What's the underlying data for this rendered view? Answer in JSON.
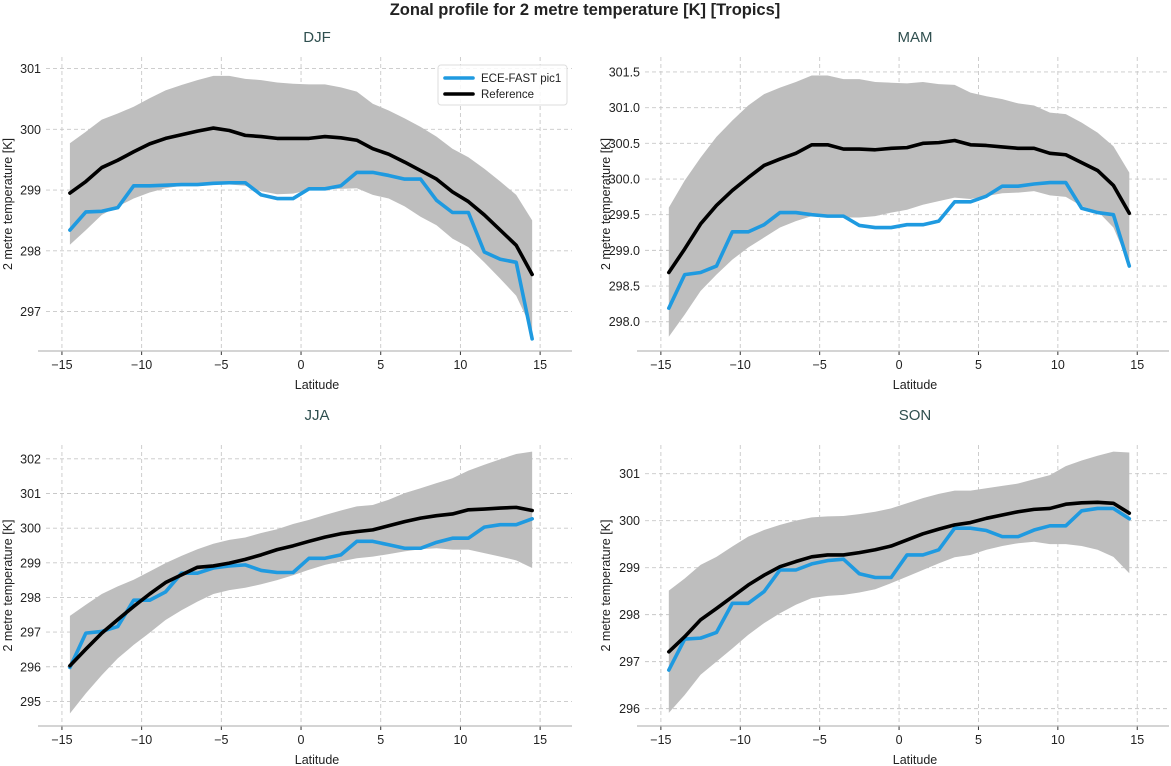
{
  "chart_data": {
    "type": "line",
    "title": "Zonal profile for 2 metre temperature [K] [Tropics]",
    "legend": {
      "placement": "top-right of first panel",
      "entries": [
        "ECE-FAST pic1",
        "Reference"
      ]
    },
    "colors": {
      "model": "#1f9ae0",
      "reference": "#000000",
      "band": "#bebebe",
      "panel_title": "#2f4f4f"
    },
    "grid": true,
    "lat": [
      -14.5,
      -13.5,
      -12.5,
      -11.5,
      -10.5,
      -9.5,
      -8.5,
      -7.5,
      -6.5,
      -5.5,
      -4.5,
      -3.5,
      -2.5,
      -1.5,
      -0.5,
      0.5,
      1.5,
      2.5,
      3.5,
      4.5,
      5.5,
      6.5,
      7.5,
      8.5,
      9.5,
      10.5,
      11.5,
      12.5,
      13.5,
      14.5
    ],
    "panels": [
      {
        "title": "DJF",
        "xlabel": "Latitude",
        "ylabel": "2 metre temperature [K]",
        "xlim": [
          -16,
          17
        ],
        "ylim": [
          296.35,
          301.19
        ],
        "xticks": [
          -15,
          -10,
          -5,
          0,
          5,
          10,
          15
        ],
        "xtick_labels": [
          "−15",
          "−10",
          "−5",
          "0",
          "5",
          "10",
          "15"
        ],
        "yticks": [
          297,
          298,
          299,
          300,
          301
        ],
        "ytick_labels": [
          "297",
          "298",
          "299",
          "300",
          "301"
        ],
        "show_legend": true,
        "series": [
          {
            "name": "ECE-FAST pic1",
            "values": [
              298.34,
              298.64,
              298.65,
              298.71,
              299.07,
              299.07,
              299.08,
              299.09,
              299.09,
              299.11,
              299.12,
              299.12,
              298.92,
              298.86,
              298.86,
              299.02,
              299.02,
              299.07,
              299.29,
              299.29,
              299.24,
              299.18,
              299.18,
              298.83,
              298.63,
              298.63,
              297.98,
              297.86,
              297.81,
              296.55
            ]
          },
          {
            "name": "Reference",
            "values": [
              298.95,
              299.14,
              299.37,
              299.49,
              299.63,
              299.76,
              299.85,
              299.91,
              299.97,
              300.02,
              299.98,
              299.9,
              299.88,
              299.85,
              299.85,
              299.85,
              299.88,
              299.86,
              299.82,
              299.68,
              299.59,
              299.46,
              299.32,
              299.18,
              298.97,
              298.81,
              298.59,
              298.34,
              298.09,
              297.61
            ]
          }
        ],
        "band_upper": [
          299.77,
          299.96,
          300.16,
          300.26,
          300.37,
          300.51,
          300.64,
          300.73,
          300.81,
          300.88,
          300.88,
          300.83,
          300.81,
          300.77,
          300.75,
          300.74,
          300.74,
          300.69,
          300.62,
          300.42,
          300.31,
          300.18,
          300.04,
          299.88,
          299.68,
          299.54,
          299.35,
          299.14,
          298.92,
          298.5
        ],
        "band_lower": [
          298.1,
          298.34,
          298.59,
          298.73,
          298.86,
          298.96,
          299.03,
          299.07,
          299.07,
          299.09,
          299.09,
          299.07,
          298.98,
          298.93,
          298.94,
          299.0,
          299.02,
          299.02,
          299.03,
          298.92,
          298.86,
          298.73,
          298.56,
          298.42,
          298.2,
          298.06,
          297.81,
          297.54,
          297.26,
          296.7
        ]
      },
      {
        "title": "MAM",
        "xlabel": "Latitude",
        "ylabel": "2 metre temperature [K]",
        "xlim": [
          -16,
          17
        ],
        "ylim": [
          297.59,
          301.71
        ],
        "xticks": [
          -15,
          -10,
          -5,
          0,
          5,
          10,
          15
        ],
        "xtick_labels": [
          "−15",
          "−10",
          "−5",
          "0",
          "5",
          "10",
          "15"
        ],
        "yticks": [
          298.0,
          298.5,
          299.0,
          299.5,
          300.0,
          300.5,
          301.0,
          301.5
        ],
        "ytick_labels": [
          "298.0",
          "298.5",
          "299.0",
          "299.5",
          "300.0",
          "300.5",
          "301.0",
          "301.5"
        ],
        "show_legend": false,
        "series": [
          {
            "name": "ECE-FAST pic1",
            "values": [
              298.19,
              298.66,
              298.69,
              298.78,
              299.26,
              299.26,
              299.36,
              299.53,
              299.53,
              299.5,
              299.48,
              299.48,
              299.35,
              299.32,
              299.32,
              299.36,
              299.36,
              299.41,
              299.68,
              299.68,
              299.76,
              299.9,
              299.9,
              299.93,
              299.95,
              299.95,
              299.59,
              299.53,
              299.5,
              298.78
            ]
          },
          {
            "name": "Reference",
            "values": [
              298.69,
              299.02,
              299.37,
              299.63,
              299.84,
              300.02,
              300.19,
              300.28,
              300.36,
              300.48,
              300.48,
              300.42,
              300.42,
              300.41,
              300.43,
              300.44,
              300.5,
              300.51,
              300.54,
              300.48,
              300.47,
              300.45,
              300.43,
              300.43,
              300.36,
              300.34,
              300.23,
              300.12,
              299.91,
              299.52
            ]
          }
        ],
        "band_upper": [
          299.6,
          299.98,
          300.3,
          300.59,
          300.82,
          301.03,
          301.19,
          301.28,
          301.36,
          301.45,
          301.45,
          301.4,
          301.4,
          301.36,
          301.35,
          301.34,
          301.36,
          301.33,
          301.32,
          301.21,
          301.16,
          301.12,
          301.06,
          301.03,
          300.93,
          300.91,
          300.79,
          300.65,
          300.46,
          300.09
        ],
        "band_lower": [
          297.79,
          298.1,
          298.43,
          298.66,
          298.87,
          299.04,
          299.18,
          299.32,
          299.41,
          299.48,
          299.48,
          299.46,
          299.46,
          299.48,
          299.53,
          299.57,
          299.64,
          299.69,
          299.74,
          299.72,
          299.76,
          299.8,
          299.81,
          299.83,
          299.77,
          299.75,
          299.62,
          299.55,
          299.32,
          298.8
        ]
      },
      {
        "title": "JJA",
        "xlabel": "Latitude",
        "ylabel": "2 metre temperature [K]",
        "xlim": [
          -16,
          17
        ],
        "ylim": [
          294.29,
          302.4
        ],
        "xticks": [
          -15,
          -10,
          -5,
          0,
          5,
          10,
          15
        ],
        "xtick_labels": [
          "−15",
          "−10",
          "−5",
          "0",
          "5",
          "10",
          "15"
        ],
        "yticks": [
          295,
          296,
          297,
          298,
          299,
          300,
          301,
          302
        ],
        "ytick_labels": [
          "295",
          "296",
          "297",
          "298",
          "299",
          "300",
          "301",
          "302"
        ],
        "show_legend": false,
        "series": [
          {
            "name": "ECE-FAST pic1",
            "values": [
              295.98,
              296.97,
              297.02,
              297.16,
              297.92,
              297.92,
              298.16,
              298.7,
              298.7,
              298.85,
              298.91,
              298.94,
              298.78,
              298.72,
              298.72,
              299.13,
              299.13,
              299.23,
              299.62,
              299.62,
              299.52,
              299.42,
              299.42,
              299.59,
              299.71,
              299.71,
              300.03,
              300.1,
              300.1,
              300.27
            ]
          },
          {
            "name": "Reference",
            "values": [
              296.03,
              296.51,
              296.97,
              297.36,
              297.74,
              298.1,
              298.43,
              298.65,
              298.87,
              298.91,
              298.99,
              299.1,
              299.23,
              299.38,
              299.49,
              299.62,
              299.74,
              299.84,
              299.9,
              299.95,
              300.07,
              300.19,
              300.29,
              300.36,
              300.41,
              300.53,
              300.55,
              300.58,
              300.6,
              300.51
            ]
          }
        ],
        "band_upper": [
          297.47,
          297.79,
          298.1,
          298.32,
          298.51,
          298.75,
          298.99,
          299.2,
          299.39,
          299.55,
          299.66,
          299.73,
          299.86,
          299.97,
          300.12,
          300.24,
          300.38,
          300.51,
          300.63,
          300.67,
          300.82,
          301.01,
          301.15,
          301.3,
          301.44,
          301.66,
          301.83,
          301.99,
          302.14,
          302.21
        ],
        "band_lower": [
          294.65,
          295.23,
          295.76,
          296.24,
          296.63,
          296.98,
          297.35,
          297.63,
          297.88,
          298.1,
          298.21,
          298.28,
          298.38,
          298.5,
          298.64,
          298.8,
          298.94,
          299.04,
          299.13,
          299.18,
          299.25,
          299.33,
          299.39,
          299.42,
          299.38,
          299.38,
          299.28,
          299.18,
          299.07,
          298.85
        ]
      },
      {
        "title": "SON",
        "xlabel": "Latitude",
        "ylabel": "2 metre temperature [K]",
        "xlim": [
          -16,
          17
        ],
        "ylim": [
          295.63,
          301.61
        ],
        "xticks": [
          -15,
          -10,
          -5,
          0,
          5,
          10,
          15
        ],
        "xtick_labels": [
          "−15",
          "−10",
          "−5",
          "0",
          "5",
          "10",
          "15"
        ],
        "yticks": [
          296,
          297,
          298,
          299,
          300,
          301
        ],
        "ytick_labels": [
          "296",
          "297",
          "298",
          "299",
          "300",
          "301"
        ],
        "show_legend": false,
        "series": [
          {
            "name": "ECE-FAST pic1",
            "values": [
              296.82,
              297.48,
              297.5,
              297.62,
              298.24,
              298.24,
              298.49,
              298.95,
              298.95,
              299.08,
              299.15,
              299.18,
              298.87,
              298.79,
              298.79,
              299.27,
              299.27,
              299.38,
              299.84,
              299.84,
              299.79,
              299.66,
              299.66,
              299.8,
              299.89,
              299.89,
              300.21,
              300.26,
              300.26,
              300.04
            ]
          },
          {
            "name": "Reference",
            "values": [
              297.21,
              297.53,
              297.89,
              298.13,
              298.38,
              298.63,
              298.84,
              299.02,
              299.13,
              299.23,
              299.27,
              299.27,
              299.32,
              299.38,
              299.46,
              299.59,
              299.72,
              299.82,
              299.91,
              299.96,
              300.05,
              300.12,
              300.19,
              300.24,
              300.26,
              300.35,
              300.38,
              300.39,
              300.37,
              300.16
            ]
          }
        ],
        "band_upper": [
          298.51,
          298.77,
          299.06,
          299.23,
          299.45,
          299.66,
          299.8,
          299.91,
          300.0,
          300.07,
          300.09,
          300.1,
          300.14,
          300.19,
          300.26,
          300.37,
          300.48,
          300.57,
          300.64,
          300.64,
          300.69,
          300.74,
          300.79,
          300.88,
          300.97,
          301.16,
          301.28,
          301.38,
          301.47,
          301.45
        ],
        "band_lower": [
          295.91,
          296.29,
          296.72,
          297.0,
          297.28,
          297.57,
          297.82,
          298.03,
          298.21,
          298.35,
          298.4,
          298.42,
          298.47,
          298.54,
          298.67,
          298.81,
          298.95,
          299.09,
          299.22,
          299.27,
          299.38,
          299.46,
          299.52,
          299.55,
          299.5,
          299.5,
          299.46,
          299.38,
          299.23,
          298.88
        ]
      }
    ]
  }
}
